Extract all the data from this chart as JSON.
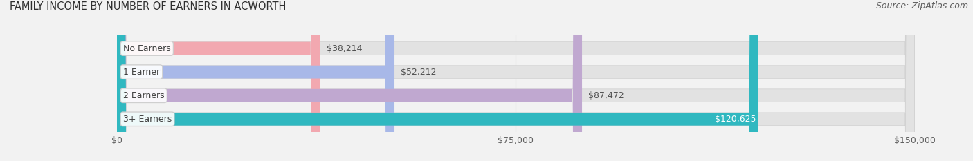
{
  "title": "FAMILY INCOME BY NUMBER OF EARNERS IN ACWORTH",
  "source": "Source: ZipAtlas.com",
  "categories": [
    "No Earners",
    "1 Earner",
    "2 Earners",
    "3+ Earners"
  ],
  "values": [
    38214,
    52212,
    87472,
    120625
  ],
  "labels": [
    "$38,214",
    "$52,212",
    "$87,472",
    "$120,625"
  ],
  "bar_colors": [
    "#f2a8b0",
    "#a8b8e8",
    "#c0a8d0",
    "#30b8c0"
  ],
  "background_color": "#f2f2f2",
  "bar_bg_color": "#e2e2e2",
  "xlim": [
    0,
    150000
  ],
  "xtick_values": [
    0,
    75000,
    150000
  ],
  "xtick_labels": [
    "$0",
    "$75,000",
    "$150,000"
  ],
  "title_fontsize": 10.5,
  "source_fontsize": 9,
  "label_fontsize": 9,
  "category_fontsize": 9,
  "bar_height": 0.55,
  "fig_width": 14.06,
  "fig_height": 2.33
}
